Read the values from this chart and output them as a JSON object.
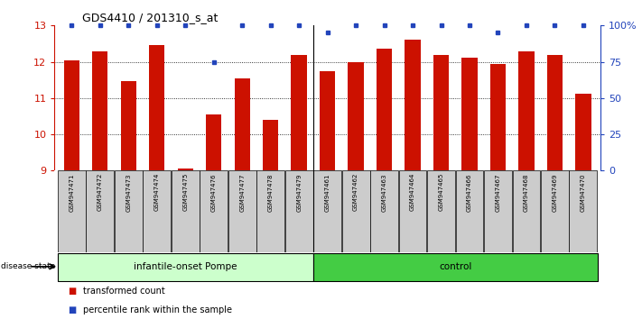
{
  "title": "GDS4410 / 201310_s_at",
  "samples": [
    "GSM947471",
    "GSM947472",
    "GSM947473",
    "GSM947474",
    "GSM947475",
    "GSM947476",
    "GSM947477",
    "GSM947478",
    "GSM947479",
    "GSM947461",
    "GSM947462",
    "GSM947463",
    "GSM947464",
    "GSM947465",
    "GSM947466",
    "GSM947467",
    "GSM947468",
    "GSM947469",
    "GSM947470"
  ],
  "red_values": [
    12.05,
    12.3,
    11.48,
    12.45,
    9.05,
    10.55,
    11.55,
    10.4,
    12.18,
    11.73,
    11.98,
    12.35,
    12.62,
    12.18,
    12.12,
    11.93,
    12.28,
    12.18,
    11.12
  ],
  "blue_values_pct": [
    100,
    100,
    100,
    100,
    100,
    75,
    100,
    100,
    100,
    95,
    100,
    100,
    100,
    100,
    100,
    95,
    100,
    100,
    100
  ],
  "group1_count": 9,
  "group2_count": 10,
  "group1_label": "infantile-onset Pompe",
  "group2_label": "control",
  "ymin": 9,
  "ymax": 13,
  "yticks_left": [
    9,
    10,
    11,
    12,
    13
  ],
  "yticks_right": [
    0,
    25,
    50,
    75,
    100
  ],
  "ytick_labels_right": [
    "0",
    "25",
    "50",
    "75",
    "100%"
  ],
  "bar_color": "#cc1100",
  "dot_color": "#2244bb",
  "group1_bg": "#ccffcc",
  "group2_bg": "#44cc44",
  "tick_bg": "#cccccc",
  "legend_red_label": "transformed count",
  "legend_blue_label": "percentile rank within the sample",
  "bar_width": 0.55,
  "left_axis_color": "#cc1100",
  "right_axis_color": "#2244bb"
}
